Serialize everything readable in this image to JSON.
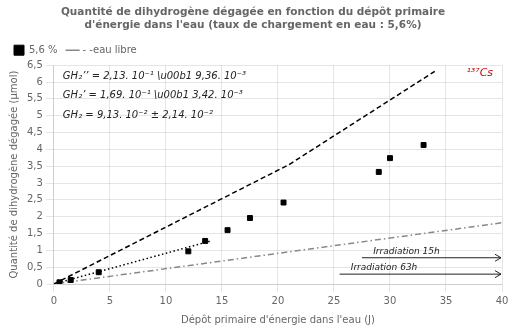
{
  "chart_data": {
    "type": "scatter",
    "title": "Quantité de dihydrogène dégagée en fonction du dépôt primaire\nd'énergie dans l'eau (taux de chargement en eau : 5,6%)",
    "xlabel": "Dépôt primaire d'énergie dans l'eau (J)",
    "ylabel": "Quantité de dihydrogène dégagée (µmol)",
    "xlim": [
      0,
      40
    ],
    "ylim": [
      0,
      6.5
    ],
    "xticks": [
      0,
      5,
      10,
      15,
      20,
      25,
      30,
      35,
      40
    ],
    "yticks": [
      0,
      {
        "value": 0.5,
        "label": "0,5"
      },
      1,
      {
        "value": 1.5,
        "label": "1,5"
      },
      2,
      {
        "value": 2.5,
        "label": "2,5"
      },
      3,
      {
        "value": 3.5,
        "label": "3,5"
      },
      4,
      {
        "value": 4.5,
        "label": "4,5"
      },
      5,
      {
        "value": 5.5,
        "label": "5,5"
      },
      6,
      {
        "value": 6.5,
        "label": "6,5"
      }
    ],
    "grid": true,
    "legend": "upper left",
    "series": [
      {
        "name": "5,6 %",
        "type": "scatter",
        "marker": "square",
        "color": "#000000",
        "x": [
          0.5,
          1.5,
          4.0,
          12.0,
          13.5,
          15.5,
          17.5,
          20.5,
          29.0,
          30.0,
          33.0
        ],
        "values": [
          0.05,
          0.12,
          0.35,
          0.97,
          1.28,
          1.6,
          1.96,
          2.42,
          3.33,
          3.74,
          4.13
        ]
      },
      {
        "type": "line",
        "line_style": "dashed",
        "color": "#000000",
        "x": [
          0,
          21
        ],
        "values": [
          0,
          3.549
        ]
      },
      {
        "type": "line",
        "line_style": "dashed",
        "color": "#000000",
        "x": [
          21,
          34
        ],
        "values": [
          3.549,
          6.318
        ]
      },
      {
        "type": "line",
        "line_style": "dotted",
        "color": "#000000",
        "x": [
          0,
          14
        ],
        "values": [
          0,
          1.2782
        ]
      },
      {
        "name": "- -eau libre",
        "type": "line",
        "line_style": "dashdot",
        "color": "#888888",
        "x": [
          0,
          40
        ],
        "values": [
          0,
          1.82
        ]
      }
    ],
    "annotations": [
      {
        "text": "GH₂’’ = 2,13. 10⁻¹ \\u00b1 9,36. 10⁻³"
      },
      {
        "text": "GH₂’ = 1,69. 10⁻¹ \\u00b1 3,42. 10⁻³"
      },
      {
        "text": "GH₂ = 9,13. 10⁻² ± 2,14. 10⁻²"
      },
      {
        "text": "¹³⁷Cs",
        "color": "#cc0000"
      },
      {
        "text": "Irradiation 15h",
        "marker": "arrow"
      },
      {
        "text": "Irradiation 63h",
        "marker": "arrow"
      }
    ]
  }
}
